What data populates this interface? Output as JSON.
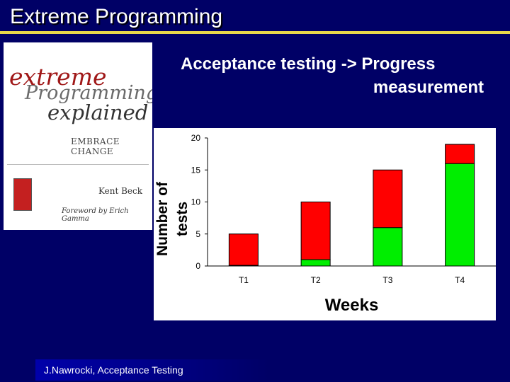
{
  "slide": {
    "title": "Extreme Programming",
    "subtitle_line1": "Acceptance testing -> Progress",
    "subtitle_line2": "measurement",
    "footer": "J.Nawrocki, Acceptance Testing"
  },
  "book_cover": {
    "title_line1": "extreme",
    "title_line2": "Programming",
    "title_line3": "explained",
    "tagline": "EMBRACE CHANGE",
    "author": "Kent Beck",
    "foreword": "Foreword by Erich Gamma"
  },
  "colors": {
    "background": "#000066",
    "title_rule": "#e8d84a",
    "failing": "#ff0000",
    "passing": "#00ee00"
  },
  "chart_data": {
    "type": "bar",
    "stacked": true,
    "categories": [
      "T1",
      "T2",
      "T3",
      "T4"
    ],
    "series": [
      {
        "color": "#00ee00",
        "values": [
          0.1,
          1,
          6,
          16
        ]
      },
      {
        "color": "#ff0000",
        "values": [
          4.9,
          9,
          9,
          3
        ]
      }
    ],
    "ylim": [
      0,
      20
    ],
    "yticks": [
      0,
      5,
      10,
      15,
      20
    ],
    "xlabel": "Weeks",
    "ylabel_line1": "Number of",
    "ylabel_line2": "tests",
    "grid": false
  }
}
